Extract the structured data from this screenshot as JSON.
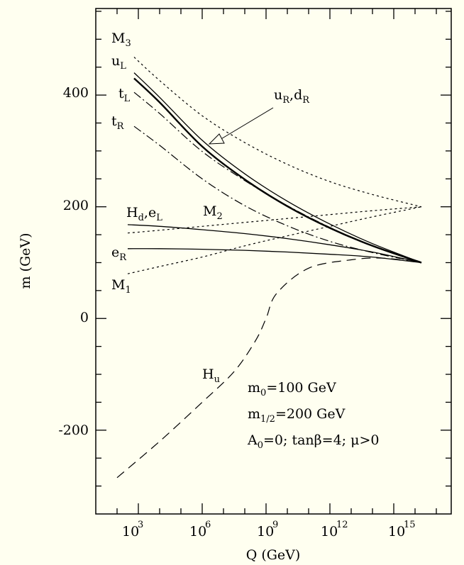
{
  "chart_data": {
    "type": "line",
    "xlabel": "Q (GeV)",
    "ylabel": "m (GeV)",
    "x_scale": "log10",
    "xlim_log10": [
      1.0,
      17.7
    ],
    "ylim": [
      -350,
      555
    ],
    "x_tick_exponents": [
      3,
      6,
      9,
      12,
      15
    ],
    "y_ticks": [
      "-200",
      "0",
      "200",
      "400"
    ],
    "y_tick_values": [
      -200,
      0,
      200,
      400
    ],
    "series": [
      {
        "name": "M3",
        "style": "dotted",
        "x_log10": [
          2.8,
          4,
          6,
          8,
          10,
          12,
          14,
          16.3
        ],
        "values": [
          468,
          426,
          363,
          315,
          276,
          245,
          222,
          200
        ]
      },
      {
        "name": "uL",
        "style": "solid",
        "x_log10": [
          2.8,
          4,
          6,
          8,
          10,
          12,
          14,
          16.3
        ],
        "values": [
          440,
          396,
          319,
          259,
          210,
          169,
          134,
          100
        ]
      },
      {
        "name": "uR,dR",
        "style": "solid-bold",
        "x_log10": [
          2.8,
          4,
          6,
          8,
          10,
          12,
          14,
          16.3
        ],
        "values": [
          430,
          387,
          308,
          249,
          201,
          162,
          130,
          100
        ]
      },
      {
        "name": "tL",
        "style": "dash-dot",
        "x_log10": [
          2.8,
          4,
          6,
          8,
          10,
          12,
          14,
          16.3
        ],
        "values": [
          405,
          367,
          299,
          247,
          202,
          163,
          130,
          100
        ]
      },
      {
        "name": "tR",
        "style": "dash-dot",
        "x_log10": [
          2.8,
          4,
          6,
          8,
          10,
          12,
          14,
          16.3
        ],
        "values": [
          344,
          310,
          250,
          202,
          166,
          138,
          118,
          100
        ]
      },
      {
        "name": "Hd,eL",
        "style": "solid",
        "x_log10": [
          2.5,
          4,
          6,
          8,
          10,
          12,
          14,
          16.3
        ],
        "values": [
          168,
          165,
          159,
          152,
          143,
          132,
          119,
          100
        ]
      },
      {
        "name": "M2",
        "style": "dotted",
        "x_log10": [
          2.5,
          4,
          6,
          8,
          10,
          12,
          14,
          16.3
        ],
        "values": [
          153,
          158,
          165,
          172,
          179,
          186,
          193,
          200
        ]
      },
      {
        "name": "eR",
        "style": "solid",
        "x_log10": [
          2.5,
          4,
          6,
          8,
          10,
          12,
          14,
          16.3
        ],
        "values": [
          125,
          125,
          124,
          122,
          119,
          115,
          110,
          100
        ]
      },
      {
        "name": "M1",
        "style": "dotted",
        "x_log10": [
          2.5,
          4,
          6,
          8,
          10,
          12,
          14,
          16.3
        ],
        "values": [
          80,
          93,
          110,
          130,
          148,
          165,
          182,
          200
        ]
      },
      {
        "name": "Hu",
        "style": "dashed",
        "x_log10": [
          2.0,
          4,
          6,
          7.5,
          8.5,
          9.0,
          9.5,
          11,
          13,
          14.5,
          16.3
        ],
        "values": [
          -285,
          -220,
          -150,
          -95,
          -40,
          0,
          45,
          90,
          105,
          108,
          100
        ]
      }
    ],
    "labels": {
      "M3": {
        "main": "M",
        "sub": "3"
      },
      "uL": {
        "main": "u",
        "sub": "L"
      },
      "tL": {
        "main": "t",
        "sub": "L"
      },
      "tR": {
        "main": "t",
        "sub": "R"
      },
      "uRdR": {
        "main1": "u",
        "sub1": "R",
        "mid": ",d",
        "sub2": "R"
      },
      "HdeL": {
        "main1": "H",
        "sub1": "d",
        "mid": ",e",
        "sub2": "L"
      },
      "M2": {
        "main": "M",
        "sub": "2"
      },
      "eR": {
        "main": "e",
        "sub": "R"
      },
      "M1": {
        "main": "M",
        "sub": "1"
      },
      "Hu": {
        "main": "H",
        "sub": "u"
      }
    },
    "annotations": {
      "m0": {
        "a": "m",
        "sub": "0",
        "b": "=100 GeV"
      },
      "m12": {
        "a": "m",
        "sub": "1/2",
        "b": "=200 GeV"
      },
      "a0": {
        "a": "A",
        "sub": "0",
        "b": "=0;  tanβ=4;  μ>0"
      }
    },
    "grid": false,
    "legend": "none"
  }
}
